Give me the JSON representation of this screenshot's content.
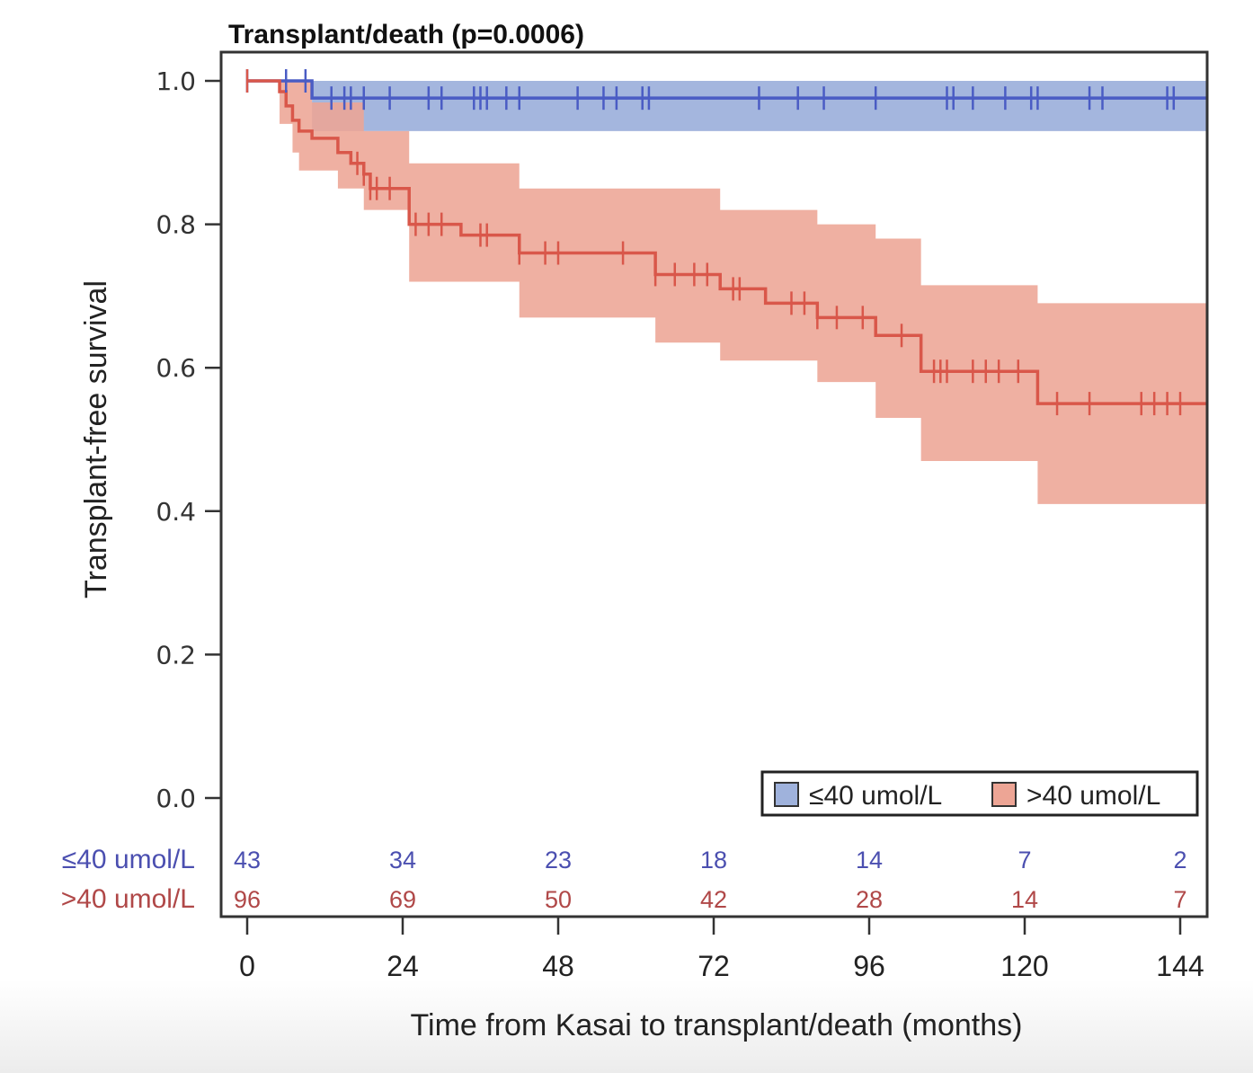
{
  "chart_data": {
    "type": "line",
    "subtype": "kaplan-meier",
    "title": "Transplant/death (p=0.0006)",
    "xlabel": "Time from Kasai to transplant/death (months)",
    "ylabel": "Transplant-free survival",
    "xlim": [
      0,
      144
    ],
    "ylim": [
      0.0,
      1.0
    ],
    "xticks": [
      "0",
      "24",
      "48",
      "72",
      "96",
      "120",
      "144"
    ],
    "xtick_values": [
      0,
      24,
      48,
      72,
      96,
      120,
      144
    ],
    "yticks": [
      "0.0",
      "0.2",
      "0.4",
      "0.6",
      "0.8",
      "1.0"
    ],
    "ytick_values": [
      0.0,
      0.2,
      0.4,
      0.6,
      0.8,
      1.0
    ],
    "grid": false,
    "legend_position": "bottom-right",
    "series": [
      {
        "name": "≤40 umol/L",
        "line_color": "#4a5cc4",
        "band_color": "#9fb2dc",
        "label_color": "#4b4fb0",
        "steps": [
          [
            0,
            1.0
          ],
          [
            10,
            0.976
          ],
          [
            149,
            0.976
          ]
        ],
        "ci_lower": [
          [
            10,
            0.93
          ],
          [
            149,
            0.93
          ]
        ],
        "ci_upper": [
          [
            10,
            1.0
          ],
          [
            149,
            1.0
          ]
        ],
        "censor_times": [
          0,
          6,
          9,
          13,
          15,
          16,
          18,
          22,
          28,
          30,
          35,
          36,
          37,
          40,
          42,
          51,
          55,
          57,
          61,
          62,
          79,
          85,
          89,
          97,
          108,
          109,
          112,
          117,
          121,
          122,
          130,
          132,
          142,
          143
        ],
        "at_risk": [
          43,
          34,
          23,
          18,
          14,
          7,
          2
        ]
      },
      {
        "name": ">40 umol/L",
        "line_color": "#d9574a",
        "band_color": "#eda595",
        "label_color": "#b04848",
        "steps": [
          [
            0,
            1.0
          ],
          [
            5,
            0.985
          ],
          [
            6,
            0.965
          ],
          [
            7,
            0.945
          ],
          [
            8,
            0.93
          ],
          [
            10,
            0.92
          ],
          [
            14,
            0.9
          ],
          [
            16,
            0.885
          ],
          [
            18,
            0.87
          ],
          [
            19,
            0.85
          ],
          [
            25,
            0.8
          ],
          [
            33,
            0.785
          ],
          [
            42,
            0.76
          ],
          [
            63,
            0.73
          ],
          [
            73,
            0.71
          ],
          [
            80,
            0.69
          ],
          [
            88,
            0.67
          ],
          [
            97,
            0.645
          ],
          [
            104,
            0.595
          ],
          [
            122,
            0.55
          ],
          [
            149,
            0.55
          ]
        ],
        "ci_lower": [
          [
            5,
            0.94
          ],
          [
            7,
            0.9
          ],
          [
            8,
            0.875
          ],
          [
            14,
            0.85
          ],
          [
            18,
            0.82
          ],
          [
            25,
            0.72
          ],
          [
            42,
            0.67
          ],
          [
            63,
            0.635
          ],
          [
            73,
            0.61
          ],
          [
            88,
            0.58
          ],
          [
            97,
            0.53
          ],
          [
            104,
            0.47
          ],
          [
            122,
            0.41
          ],
          [
            149,
            0.41
          ]
        ],
        "ci_upper": [
          [
            5,
            1.0
          ],
          [
            10,
            0.97
          ],
          [
            18,
            0.93
          ],
          [
            25,
            0.885
          ],
          [
            42,
            0.85
          ],
          [
            63,
            0.85
          ],
          [
            73,
            0.82
          ],
          [
            88,
            0.8
          ],
          [
            97,
            0.78
          ],
          [
            104,
            0.715
          ],
          [
            122,
            0.69
          ],
          [
            149,
            0.69
          ]
        ],
        "censor_times": [
          0,
          17,
          18,
          19,
          20,
          22,
          26,
          28,
          30,
          36,
          37,
          42,
          46,
          48,
          58,
          63,
          66,
          69,
          71,
          75,
          76,
          84,
          86,
          88,
          91,
          95,
          101,
          106,
          107,
          108,
          112,
          114,
          116,
          119,
          125,
          130,
          138,
          140,
          142,
          144
        ],
        "at_risk": [
          96,
          69,
          50,
          42,
          28,
          14,
          7
        ]
      }
    ],
    "risk_table": {
      "times": [
        0,
        24,
        48,
        72,
        96,
        120,
        144
      ],
      "rows": [
        {
          "label": "≤40 umol/L",
          "values": [
            "43",
            "34",
            "23",
            "18",
            "14",
            "7",
            "2"
          ]
        },
        {
          "label": ">40 umol/L",
          "values": [
            "96",
            "69",
            "50",
            "42",
            "28",
            "14",
            "7"
          ]
        }
      ]
    },
    "legend": [
      {
        "label": "≤40 umol/L",
        "color": "#9fb2dc"
      },
      {
        "label": ">40 umol/L",
        "color": "#eda595"
      }
    ]
  }
}
